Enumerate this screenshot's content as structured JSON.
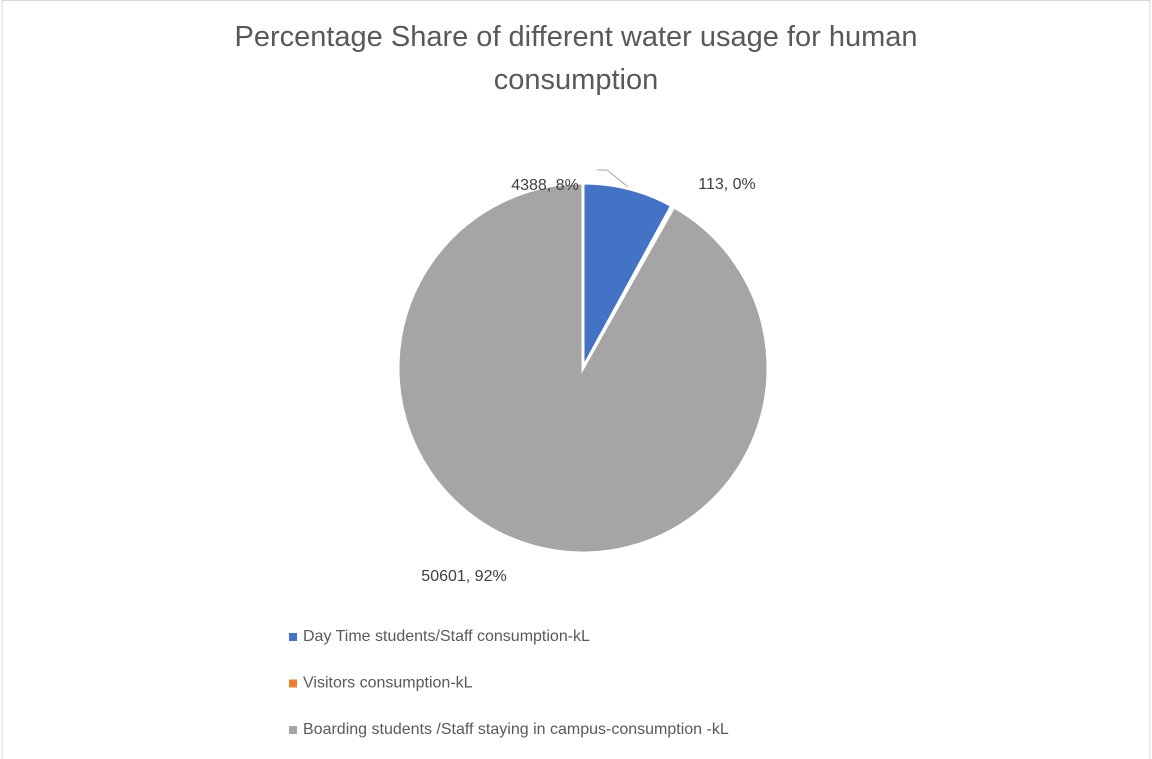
{
  "chart_data": {
    "type": "pie",
    "title": "Percentage Share of different water usage for human consumption",
    "categories": [
      "Day Time students/Staff consumption-kL",
      "Visitors consumption-kL",
      "Boarding students /Staff staying in campus-consumption -kL"
    ],
    "values": [
      4388,
      113,
      50601
    ],
    "value_labels": [
      "4388, 8%",
      "113, 0%",
      "50601, 92%"
    ],
    "colors": [
      "#4472c4",
      "#ed7d31",
      "#a5a5a5"
    ],
    "legend": "bottom"
  }
}
